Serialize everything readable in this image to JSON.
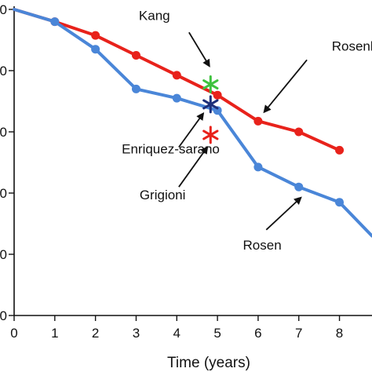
{
  "chart_data": {
    "type": "line",
    "xlabel": "Time (years)",
    "x_ticks": [
      0,
      1,
      2,
      3,
      4,
      5,
      6,
      7,
      8
    ],
    "xlim": [
      0,
      8.8
    ],
    "ylim": [
      0,
      100
    ],
    "y_tick_labels": [
      "0",
      "0",
      "0",
      "0",
      "0",
      "0"
    ],
    "series": [
      {
        "color": "#e8221b",
        "points": [
          [
            0,
            100
          ],
          [
            1,
            96
          ],
          [
            2,
            91.5
          ],
          [
            3,
            85
          ],
          [
            4,
            78.5
          ],
          [
            5,
            72
          ],
          [
            6,
            63.5
          ],
          [
            7,
            60
          ],
          [
            8,
            54
          ]
        ]
      },
      {
        "color": "#4a86d8",
        "points": [
          [
            0,
            100
          ],
          [
            1,
            96
          ],
          [
            2,
            87
          ],
          [
            3,
            74
          ],
          [
            4,
            71
          ],
          [
            5,
            67
          ],
          [
            6,
            48.5
          ],
          [
            7,
            42
          ],
          [
            8,
            37
          ],
          [
            8.8,
            26
          ]
        ]
      }
    ],
    "markers": [
      {
        "name": "Kang",
        "x": 4.83,
        "y": 75.5,
        "color": "#3ec23e"
      },
      {
        "name": "Enriquez-sarano",
        "x": 4.83,
        "y": 69,
        "color": "#1c2f7a"
      },
      {
        "name": "Grigioni",
        "x": 4.83,
        "y": 59,
        "color": "#e8221b"
      }
    ],
    "annotations": [
      {
        "text": "Kang",
        "text_x": 3.45,
        "text_y": 96.5,
        "arrow_from": [
          4.3,
          92.5
        ],
        "arrow_to": [
          4.8,
          81.5
        ]
      },
      {
        "text": "Rosenhek",
        "text_x": 8.55,
        "text_y": 86.5,
        "arrow_from": [
          7.2,
          83.5
        ],
        "arrow_to": [
          6.15,
          66.5
        ]
      },
      {
        "text": "Enriquez-sarano",
        "text_x": 3.85,
        "text_y": 53,
        "arrow_from": [
          4.05,
          55
        ],
        "arrow_to": [
          4.65,
          66
        ]
      },
      {
        "text": "Grigioni",
        "text_x": 3.65,
        "text_y": 38,
        "arrow_from": [
          4.05,
          42
        ],
        "arrow_to": [
          4.75,
          55
        ]
      },
      {
        "text": "Rosen",
        "text_x": 6.1,
        "text_y": 21.5,
        "arrow_from": [
          6.2,
          28
        ],
        "arrow_to": [
          7.05,
          38.5
        ]
      }
    ],
    "colors": {
      "axis": "#111111",
      "background": "#ffffff"
    }
  }
}
